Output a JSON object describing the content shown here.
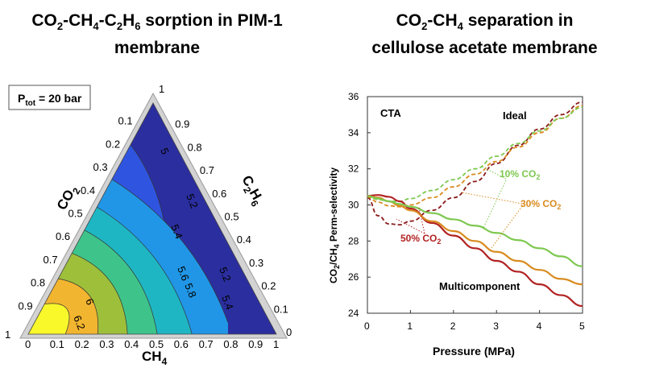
{
  "titles": {
    "left_line1_parts": [
      "CO",
      "2",
      "-CH",
      "4",
      "-C",
      "2",
      "H",
      "6",
      " sorption in PIM-1"
    ],
    "left_line2": "membrane",
    "right_line1_parts": [
      "CO",
      "2",
      "-CH",
      "4",
      " separation in"
    ],
    "right_line2": "cellulose acetate membrane"
  },
  "colors": {
    "ideal": "#8b1a1a",
    "co2_50": "#b22222",
    "co2_30": "#d98b1f",
    "co2_10": "#7ec850",
    "ternary_frame": "#c8c8c8"
  },
  "chart_data": [
    {
      "type": "heatmap",
      "subtype": "ternary-contour",
      "pressure_box": {
        "text": "P",
        "sub": "tot",
        "rest": " = 20 bar"
      },
      "axes": {
        "co2": {
          "label": "CO",
          "label_sub": "2",
          "ticks": [
            "0.1",
            "0.2",
            "0.3",
            "0.4",
            "0.5",
            "0.6",
            "0.7",
            "0.8",
            "0.9",
            "1"
          ]
        },
        "ch4": {
          "label": "CH",
          "label_sub": "4",
          "ticks": [
            "0",
            "0.1",
            "0.2",
            "0.3",
            "0.4",
            "0.5",
            "0.6",
            "0.7",
            "0.8",
            "0.9",
            "1"
          ]
        },
        "c2h6": {
          "label": "C",
          "label_sub1": "2",
          "label_mid": "H",
          "label_sub2": "6",
          "ticks": [
            "0",
            "0.1",
            "0.2",
            "0.3",
            "0.4",
            "0.5",
            "0.6",
            "0.7",
            "0.8",
            "0.9",
            "1"
          ]
        }
      },
      "corner_labels": {
        "top": "1",
        "left": "1",
        "right": "1"
      },
      "contour_levels": [
        "5",
        "5.2",
        "5.4",
        "5.6",
        "5.8",
        "6",
        "6.2"
      ],
      "band_colors": [
        "#2b2e9e",
        "#2f55e0",
        "#2196e6",
        "#1fb6c4",
        "#3ec48a",
        "#9ebf3a",
        "#f2b52f",
        "#f8f82a"
      ]
    },
    {
      "type": "line",
      "annotation_cta": "CTA",
      "annotation_ideal": "Ideal",
      "annotation_multi": "Multicomponent",
      "xlabel": "Pressure (MPa)",
      "ylabel_parts": [
        "CO",
        "2",
        "/CH",
        "4",
        " Perm-selectivity"
      ],
      "xlim": [
        0,
        5
      ],
      "ylim": [
        24,
        36
      ],
      "xticks": [
        "0",
        "1",
        "2",
        "3",
        "4",
        "5"
      ],
      "yticks": [
        "24",
        "26",
        "28",
        "30",
        "32",
        "34",
        "36"
      ],
      "x": [
        0,
        0.25,
        0.5,
        0.75,
        1,
        1.5,
        2,
        2.5,
        3,
        3.5,
        4,
        4.5,
        5
      ],
      "series": [
        {
          "name": "50% CO2",
          "name_parts": [
            "50% CO",
            "2"
          ],
          "kind": "ideal",
          "color": "#8b1a1a",
          "values": [
            30.4,
            29.4,
            28.95,
            28.9,
            29.1,
            29.7,
            30.4,
            31.3,
            32.3,
            33.3,
            34.2,
            35.0,
            35.7
          ]
        },
        {
          "name": "30% CO2",
          "name_parts": [
            "30% CO",
            "2"
          ],
          "kind": "ideal",
          "color": "#d98b1f",
          "values": [
            30.45,
            30.15,
            29.95,
            29.9,
            30.0,
            30.4,
            31.0,
            31.7,
            32.4,
            33.2,
            34.0,
            34.8,
            35.5
          ]
        },
        {
          "name": "10% CO2",
          "name_parts": [
            "10% CO",
            "2"
          ],
          "kind": "ideal",
          "color": "#7ec850",
          "values": [
            30.5,
            30.3,
            30.2,
            30.2,
            30.35,
            30.8,
            31.4,
            32.0,
            32.7,
            33.4,
            34.1,
            34.8,
            35.4
          ]
        },
        {
          "name": "50% CO2",
          "kind": "multicomponent",
          "color": "#b22222",
          "values": [
            30.5,
            30.55,
            30.45,
            30.2,
            29.8,
            29.0,
            28.3,
            27.6,
            26.9,
            26.3,
            25.6,
            25.0,
            24.4
          ]
        },
        {
          "name": "30% CO2",
          "kind": "multicomponent",
          "color": "#d98b1f",
          "values": [
            30.5,
            30.4,
            30.2,
            29.95,
            29.7,
            29.1,
            28.55,
            28.0,
            27.4,
            26.9,
            26.4,
            25.9,
            25.6
          ]
        },
        {
          "name": "10% CO2",
          "kind": "multicomponent",
          "color": "#7ec850",
          "values": [
            30.5,
            30.35,
            30.2,
            30.05,
            29.9,
            29.55,
            29.2,
            28.85,
            28.45,
            28.05,
            27.6,
            27.15,
            26.6
          ]
        }
      ]
    }
  ]
}
